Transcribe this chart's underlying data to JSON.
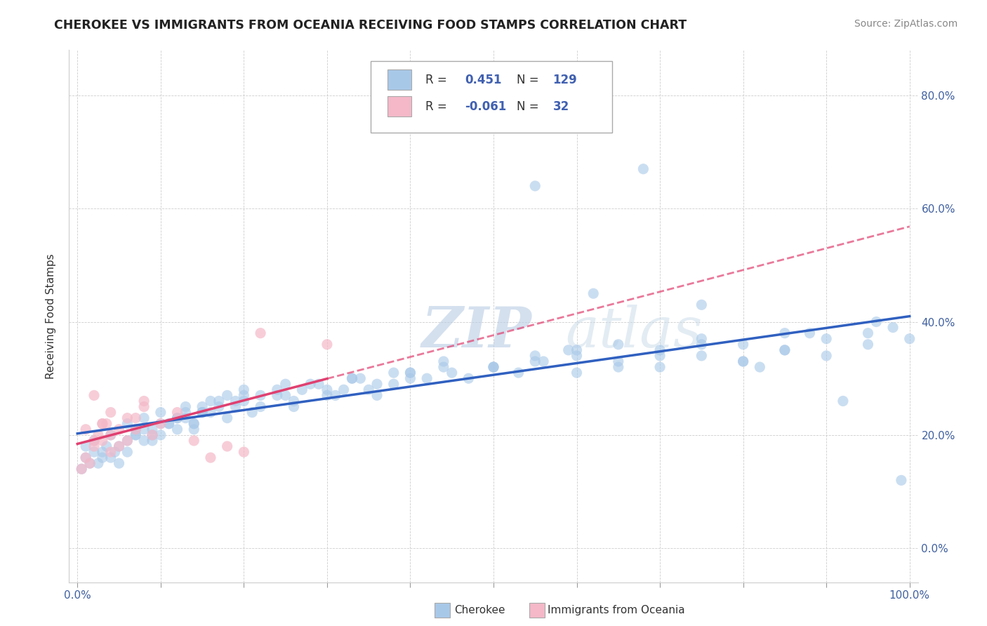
{
  "title": "CHEROKEE VS IMMIGRANTS FROM OCEANIA RECEIVING FOOD STAMPS CORRELATION CHART",
  "source": "Source: ZipAtlas.com",
  "ylabel": "Receiving Food Stamps",
  "ytick_labels": [
    "0.0%",
    "20.0%",
    "40.0%",
    "60.0%",
    "80.0%"
  ],
  "ytick_values": [
    0.0,
    0.2,
    0.4,
    0.6,
    0.8
  ],
  "xlim": [
    -0.01,
    1.01
  ],
  "ylim": [
    -0.06,
    0.88
  ],
  "watermark_text": "ZIPatlas",
  "cherokee_color": "#a8c8e8",
  "oceania_color": "#f4b8c8",
  "line_cherokee_color": "#3060c0",
  "line_oceania_color": "#e04070",
  "cherokee_x": [
    0.005,
    0.01,
    0.015,
    0.02,
    0.025,
    0.03,
    0.035,
    0.04,
    0.045,
    0.05,
    0.01,
    0.02,
    0.03,
    0.04,
    0.05,
    0.06,
    0.07,
    0.08,
    0.09,
    0.1,
    0.06,
    0.07,
    0.08,
    0.09,
    0.1,
    0.11,
    0.12,
    0.13,
    0.14,
    0.15,
    0.06,
    0.07,
    0.08,
    0.09,
    0.1,
    0.11,
    0.12,
    0.13,
    0.14,
    0.15,
    0.12,
    0.13,
    0.14,
    0.15,
    0.16,
    0.17,
    0.18,
    0.19,
    0.2,
    0.21,
    0.15,
    0.16,
    0.17,
    0.18,
    0.19,
    0.2,
    0.22,
    0.24,
    0.25,
    0.26,
    0.2,
    0.22,
    0.24,
    0.26,
    0.28,
    0.3,
    0.32,
    0.34,
    0.36,
    0.38,
    0.25,
    0.27,
    0.29,
    0.31,
    0.33,
    0.35,
    0.38,
    0.4,
    0.42,
    0.44,
    0.3,
    0.33,
    0.36,
    0.4,
    0.44,
    0.47,
    0.5,
    0.53,
    0.56,
    0.59,
    0.4,
    0.45,
    0.5,
    0.55,
    0.6,
    0.65,
    0.7,
    0.75,
    0.8,
    0.85,
    0.5,
    0.55,
    0.6,
    0.65,
    0.7,
    0.75,
    0.8,
    0.85,
    0.9,
    0.95,
    0.6,
    0.65,
    0.7,
    0.75,
    0.8,
    0.85,
    0.9,
    0.95,
    0.98,
    1.0,
    0.55,
    0.62,
    0.68,
    0.75,
    0.82,
    0.88,
    0.92,
    0.96,
    0.99
  ],
  "cherokee_y": [
    0.14,
    0.16,
    0.15,
    0.17,
    0.15,
    0.16,
    0.18,
    0.16,
    0.17,
    0.15,
    0.18,
    0.19,
    0.17,
    0.2,
    0.18,
    0.19,
    0.2,
    0.21,
    0.19,
    0.22,
    0.17,
    0.2,
    0.19,
    0.21,
    0.2,
    0.22,
    0.21,
    0.23,
    0.22,
    0.24,
    0.22,
    0.21,
    0.23,
    0.2,
    0.24,
    0.22,
    0.23,
    0.25,
    0.21,
    0.24,
    0.23,
    0.24,
    0.22,
    0.25,
    0.24,
    0.26,
    0.23,
    0.25,
    0.27,
    0.24,
    0.24,
    0.26,
    0.25,
    0.27,
    0.26,
    0.28,
    0.25,
    0.27,
    0.29,
    0.26,
    0.26,
    0.27,
    0.28,
    0.25,
    0.29,
    0.27,
    0.28,
    0.3,
    0.27,
    0.31,
    0.27,
    0.28,
    0.29,
    0.27,
    0.3,
    0.28,
    0.29,
    0.31,
    0.3,
    0.32,
    0.28,
    0.3,
    0.29,
    0.31,
    0.33,
    0.3,
    0.32,
    0.31,
    0.33,
    0.35,
    0.3,
    0.31,
    0.32,
    0.34,
    0.31,
    0.33,
    0.32,
    0.34,
    0.33,
    0.35,
    0.32,
    0.33,
    0.35,
    0.32,
    0.34,
    0.36,
    0.33,
    0.35,
    0.34,
    0.36,
    0.34,
    0.36,
    0.35,
    0.37,
    0.36,
    0.38,
    0.37,
    0.38,
    0.39,
    0.37,
    0.64,
    0.45,
    0.67,
    0.43,
    0.32,
    0.38,
    0.26,
    0.4,
    0.12
  ],
  "oceania_x": [
    0.005,
    0.01,
    0.015,
    0.02,
    0.025,
    0.03,
    0.035,
    0.04,
    0.01,
    0.02,
    0.03,
    0.04,
    0.05,
    0.06,
    0.07,
    0.08,
    0.02,
    0.03,
    0.04,
    0.05,
    0.06,
    0.07,
    0.08,
    0.09,
    0.1,
    0.12,
    0.14,
    0.16,
    0.18,
    0.2,
    0.22,
    0.3
  ],
  "oceania_y": [
    0.14,
    0.16,
    0.15,
    0.18,
    0.2,
    0.19,
    0.22,
    0.17,
    0.21,
    0.19,
    0.22,
    0.2,
    0.18,
    0.23,
    0.21,
    0.25,
    0.27,
    0.22,
    0.24,
    0.21,
    0.19,
    0.23,
    0.26,
    0.2,
    0.22,
    0.24,
    0.19,
    0.16,
    0.18,
    0.17,
    0.38,
    0.36
  ],
  "legend_r1": "R =  0.451  N = 129",
  "legend_r2": "R = -0.061  N =  32",
  "legend_label1": "Cherokee",
  "legend_label2": "Immigrants from Oceania"
}
